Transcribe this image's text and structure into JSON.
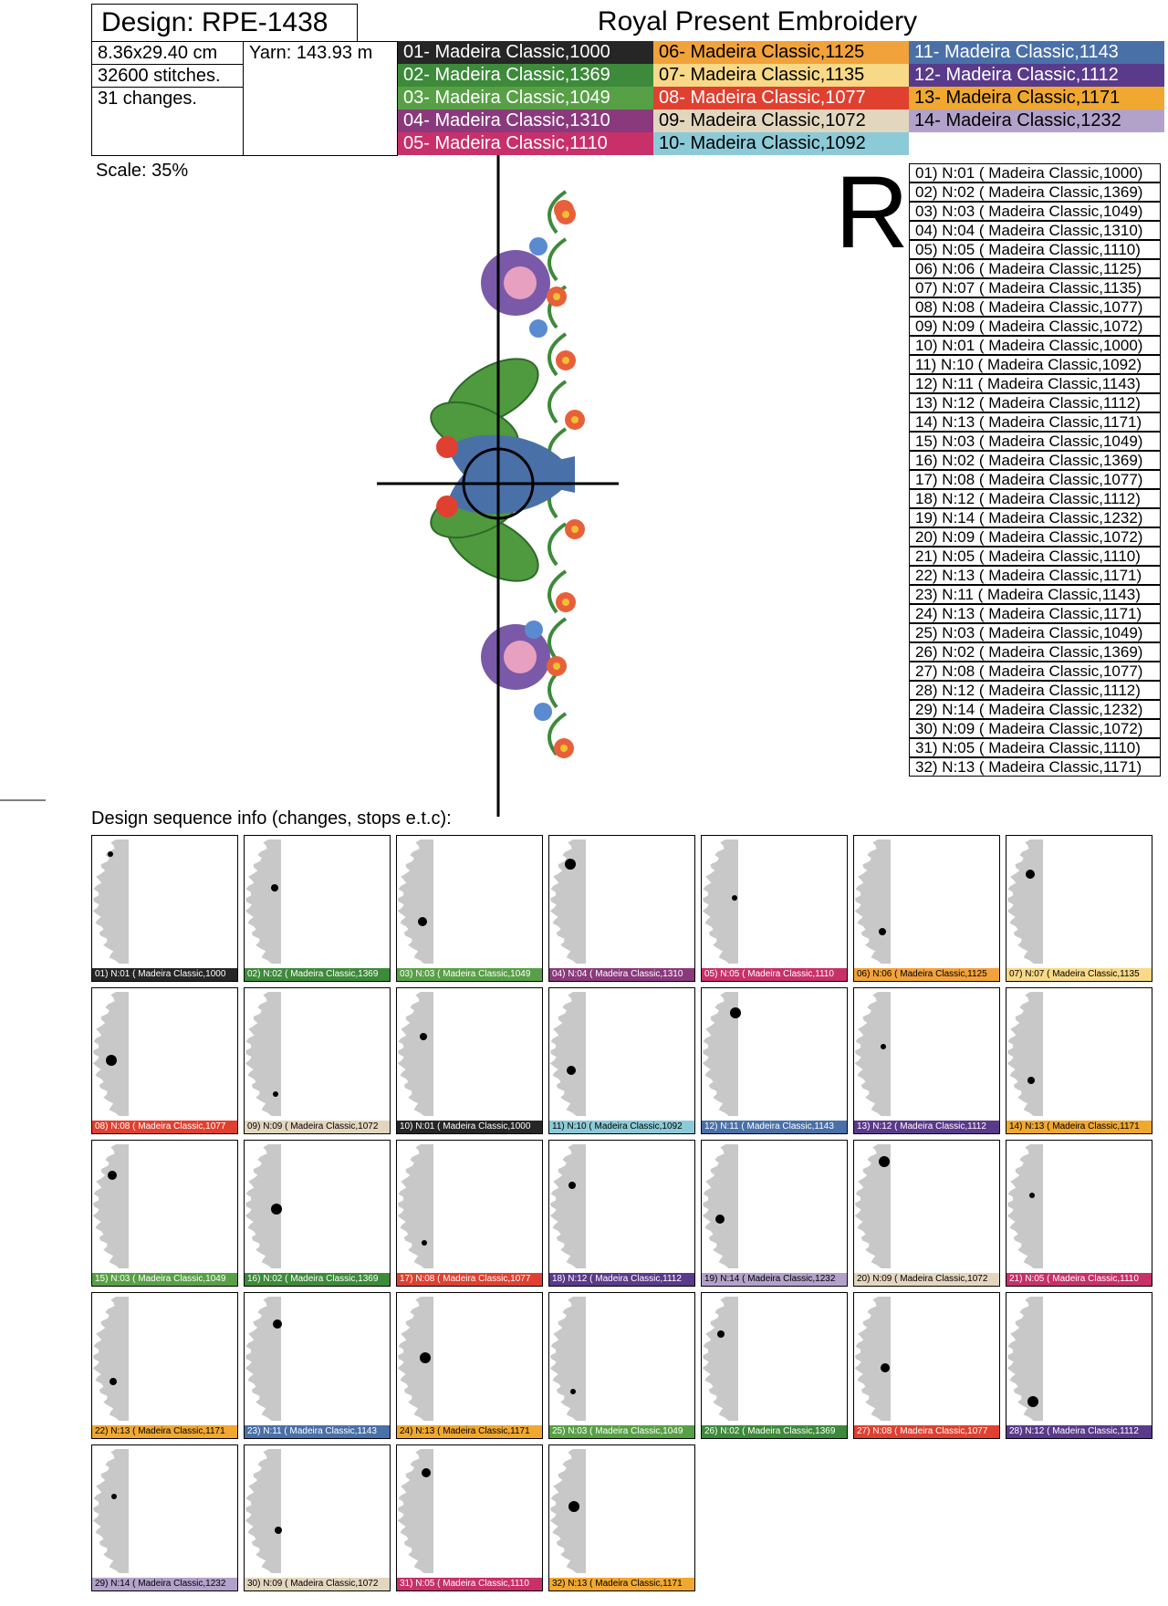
{
  "header": {
    "design": "Design: RPE-1438",
    "title": "Royal Present Embroidery"
  },
  "info": {
    "size": "8.36x29.40 cm",
    "yarn": "Yarn: 143.93 m",
    "stitches": "32600 stitches.",
    "changes": "31 changes."
  },
  "palette": [
    {
      "label": "01- Madeira Classic,1000",
      "color": "#262626"
    },
    {
      "label": "02- Madeira Classic,1369",
      "color": "#3d8a3a"
    },
    {
      "label": "03- Madeira Classic,1049",
      "color": "#58a046"
    },
    {
      "label": "04- Madeira Classic,1310",
      "color": "#8a3a7c"
    },
    {
      "label": "05- Madeira Classic,1110",
      "color": "#c8306a"
    },
    {
      "label": "06- Madeira Classic,1125",
      "color": "#f2a23a"
    },
    {
      "label": "07- Madeira Classic,1135",
      "color": "#f7d987"
    },
    {
      "label": "08- Madeira Classic,1077",
      "color": "#e04030"
    },
    {
      "label": "09- Madeira Classic,1072",
      "color": "#e2d6be"
    },
    {
      "label": "10- Madeira Classic,1092",
      "color": "#8ccad8"
    },
    {
      "label": "11- Madeira Classic,1143",
      "color": "#4a70a8"
    },
    {
      "label": "12- Madeira Classic,1112",
      "color": "#5a3a8a"
    },
    {
      "label": "13- Madeira Classic,1171",
      "color": "#f0a830"
    },
    {
      "label": "14- Madeira Classic,1232",
      "color": "#b2a2ca"
    }
  ],
  "scale": "Scale: 35%",
  "letter": "R",
  "sequence": [
    "01) N:01 ( Madeira Classic,1000)",
    "02) N:02 ( Madeira Classic,1369)",
    "03) N:03 ( Madeira Classic,1049)",
    "04) N:04 ( Madeira Classic,1310)",
    "05) N:05 ( Madeira Classic,1110)",
    "06) N:06 ( Madeira Classic,1125)",
    "07) N:07 ( Madeira Classic,1135)",
    "08) N:08 ( Madeira Classic,1077)",
    "09) N:09 ( Madeira Classic,1072)",
    "10) N:01 ( Madeira Classic,1000)",
    "11) N:10 ( Madeira Classic,1092)",
    "12) N:11 ( Madeira Classic,1143)",
    "13) N:12 ( Madeira Classic,1112)",
    "14) N:13 ( Madeira Classic,1171)",
    "15) N:03 ( Madeira Classic,1049)",
    "16) N:02 ( Madeira Classic,1369)",
    "17) N:08 ( Madeira Classic,1077)",
    "18) N:12 ( Madeira Classic,1112)",
    "19) N:14 ( Madeira Classic,1232)",
    "20) N:09 ( Madeira Classic,1072)",
    "21) N:05 ( Madeira Classic,1110)",
    "22) N:13 ( Madeira Classic,1171)",
    "23) N:11 ( Madeira Classic,1143)",
    "24) N:13 ( Madeira Classic,1171)",
    "25) N:03 ( Madeira Classic,1049)",
    "26) N:02 ( Madeira Classic,1369)",
    "27) N:08 ( Madeira Classic,1077)",
    "28) N:12 ( Madeira Classic,1112)",
    "29) N:14 ( Madeira Classic,1232)",
    "30) N:09 ( Madeira Classic,1072)",
    "31) N:05 ( Madeira Classic,1110)",
    "32) N:13 ( Madeira Classic,1171)"
  ],
  "sequence_title": "Design sequence info (changes, stops e.t.c):",
  "thumbnails": [
    {
      "caption": "01) N:01 ( Madeira Classic,1000",
      "color": "#262626"
    },
    {
      "caption": "02) N:02 ( Madeira Classic,1369",
      "color": "#3d8a3a"
    },
    {
      "caption": "03) N:03 ( Madeira Classic,1049",
      "color": "#58a046"
    },
    {
      "caption": "04) N:04 ( Madeira Classic,1310",
      "color": "#8a3a7c"
    },
    {
      "caption": "05) N:05 ( Madeira Classic,1110",
      "color": "#c8306a"
    },
    {
      "caption": "06) N:06 ( Madeira Classic,1125",
      "color": "#f2a23a"
    },
    {
      "caption": "07) N:07 ( Madeira Classic,1135",
      "color": "#f7d987"
    },
    {
      "caption": "08) N:08 ( Madeira Classic,1077",
      "color": "#e04030"
    },
    {
      "caption": "09) N:09 ( Madeira Classic,1072",
      "color": "#e2d6be"
    },
    {
      "caption": "10) N:01 ( Madeira Classic,1000",
      "color": "#262626"
    },
    {
      "caption": "11) N:10 ( Madeira Classic,1092",
      "color": "#8ccad8"
    },
    {
      "caption": "12) N:11 ( Madeira Classic,1143",
      "color": "#4a70a8"
    },
    {
      "caption": "13) N:12 ( Madeira Classic,1112",
      "color": "#5a3a8a"
    },
    {
      "caption": "14) N:13 ( Madeira Classic,1171",
      "color": "#f0a830"
    },
    {
      "caption": "15) N:03 ( Madeira Classic,1049",
      "color": "#58a046"
    },
    {
      "caption": "16) N:02 ( Madeira Classic,1369",
      "color": "#3d8a3a"
    },
    {
      "caption": "17) N:08 ( Madeira Classic,1077",
      "color": "#e04030"
    },
    {
      "caption": "18) N:12 ( Madeira Classic,1112",
      "color": "#5a3a8a"
    },
    {
      "caption": "19) N:14 ( Madeira Classic,1232",
      "color": "#b2a2ca"
    },
    {
      "caption": "20) N:09 ( Madeira Classic,1072",
      "color": "#e2d6be"
    },
    {
      "caption": "21) N:05 ( Madeira Classic,1110",
      "color": "#c8306a"
    },
    {
      "caption": "22) N:13 ( Madeira Classic,1171",
      "color": "#f0a830"
    },
    {
      "caption": "23) N:11 ( Madeira Classic,1143",
      "color": "#4a70a8"
    },
    {
      "caption": "24) N:13 ( Madeira Classic,1171",
      "color": "#f0a830"
    },
    {
      "caption": "25) N:03 ( Madeira Classic,1049",
      "color": "#58a046"
    },
    {
      "caption": "26) N:02 ( Madeira Classic,1369",
      "color": "#3d8a3a"
    },
    {
      "caption": "27) N:08 ( Madeira Classic,1077",
      "color": "#e04030"
    },
    {
      "caption": "28) N:12 ( Madeira Classic,1112",
      "color": "#5a3a8a"
    },
    {
      "caption": "29) N:14 ( Madeira Classic,1232",
      "color": "#b2a2ca"
    },
    {
      "caption": "30) N:09 ( Madeira Classic,1072",
      "color": "#e2d6be"
    },
    {
      "caption": "31) N:05 ( Madeira Classic,1110",
      "color": "#c8306a"
    },
    {
      "caption": "32) N:13 ( Madeira Classic,1171",
      "color": "#f0a830"
    }
  ]
}
